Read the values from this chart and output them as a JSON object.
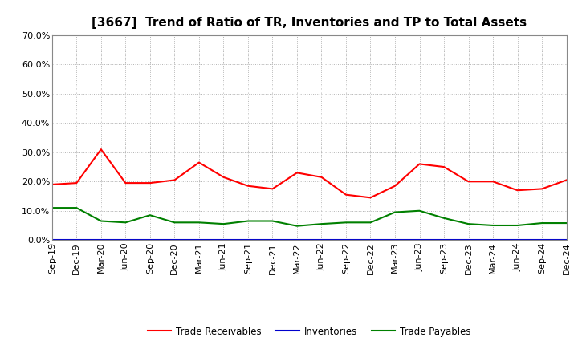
{
  "title": "[3667]  Trend of Ratio of TR, Inventories and TP to Total Assets",
  "x_labels": [
    "Sep-19",
    "Dec-19",
    "Mar-20",
    "Jun-20",
    "Sep-20",
    "Dec-20",
    "Mar-21",
    "Jun-21",
    "Sep-21",
    "Dec-21",
    "Mar-22",
    "Jun-22",
    "Sep-22",
    "Dec-22",
    "Mar-23",
    "Jun-23",
    "Sep-23",
    "Dec-23",
    "Mar-24",
    "Jun-24",
    "Sep-24",
    "Dec-24"
  ],
  "trade_receivables": [
    0.19,
    0.195,
    0.31,
    0.195,
    0.195,
    0.205,
    0.265,
    0.215,
    0.185,
    0.175,
    0.23,
    0.215,
    0.155,
    0.145,
    0.185,
    0.26,
    0.25,
    0.2,
    0.2,
    0.17,
    0.175,
    0.205
  ],
  "inventories": [
    0.001,
    0.001,
    0.001,
    0.001,
    0.001,
    0.001,
    0.001,
    0.001,
    0.001,
    0.001,
    0.001,
    0.001,
    0.001,
    0.001,
    0.001,
    0.001,
    0.001,
    0.001,
    0.001,
    0.001,
    0.001,
    0.001
  ],
  "trade_payables": [
    0.11,
    0.11,
    0.065,
    0.06,
    0.085,
    0.06,
    0.06,
    0.055,
    0.065,
    0.065,
    0.048,
    0.055,
    0.06,
    0.06,
    0.095,
    0.1,
    0.075,
    0.055,
    0.05,
    0.05,
    0.058,
    0.058
  ],
  "tr_color": "#FF0000",
  "inv_color": "#0000CD",
  "tp_color": "#008000",
  "ylim": [
    0.0,
    0.7
  ],
  "yticks": [
    0.0,
    0.1,
    0.2,
    0.3,
    0.4,
    0.5,
    0.6,
    0.7
  ],
  "background_color": "#FFFFFF",
  "grid_color": "#AAAAAA",
  "legend_labels": [
    "Trade Receivables",
    "Inventories",
    "Trade Payables"
  ],
  "title_fontsize": 11,
  "tick_fontsize": 8
}
